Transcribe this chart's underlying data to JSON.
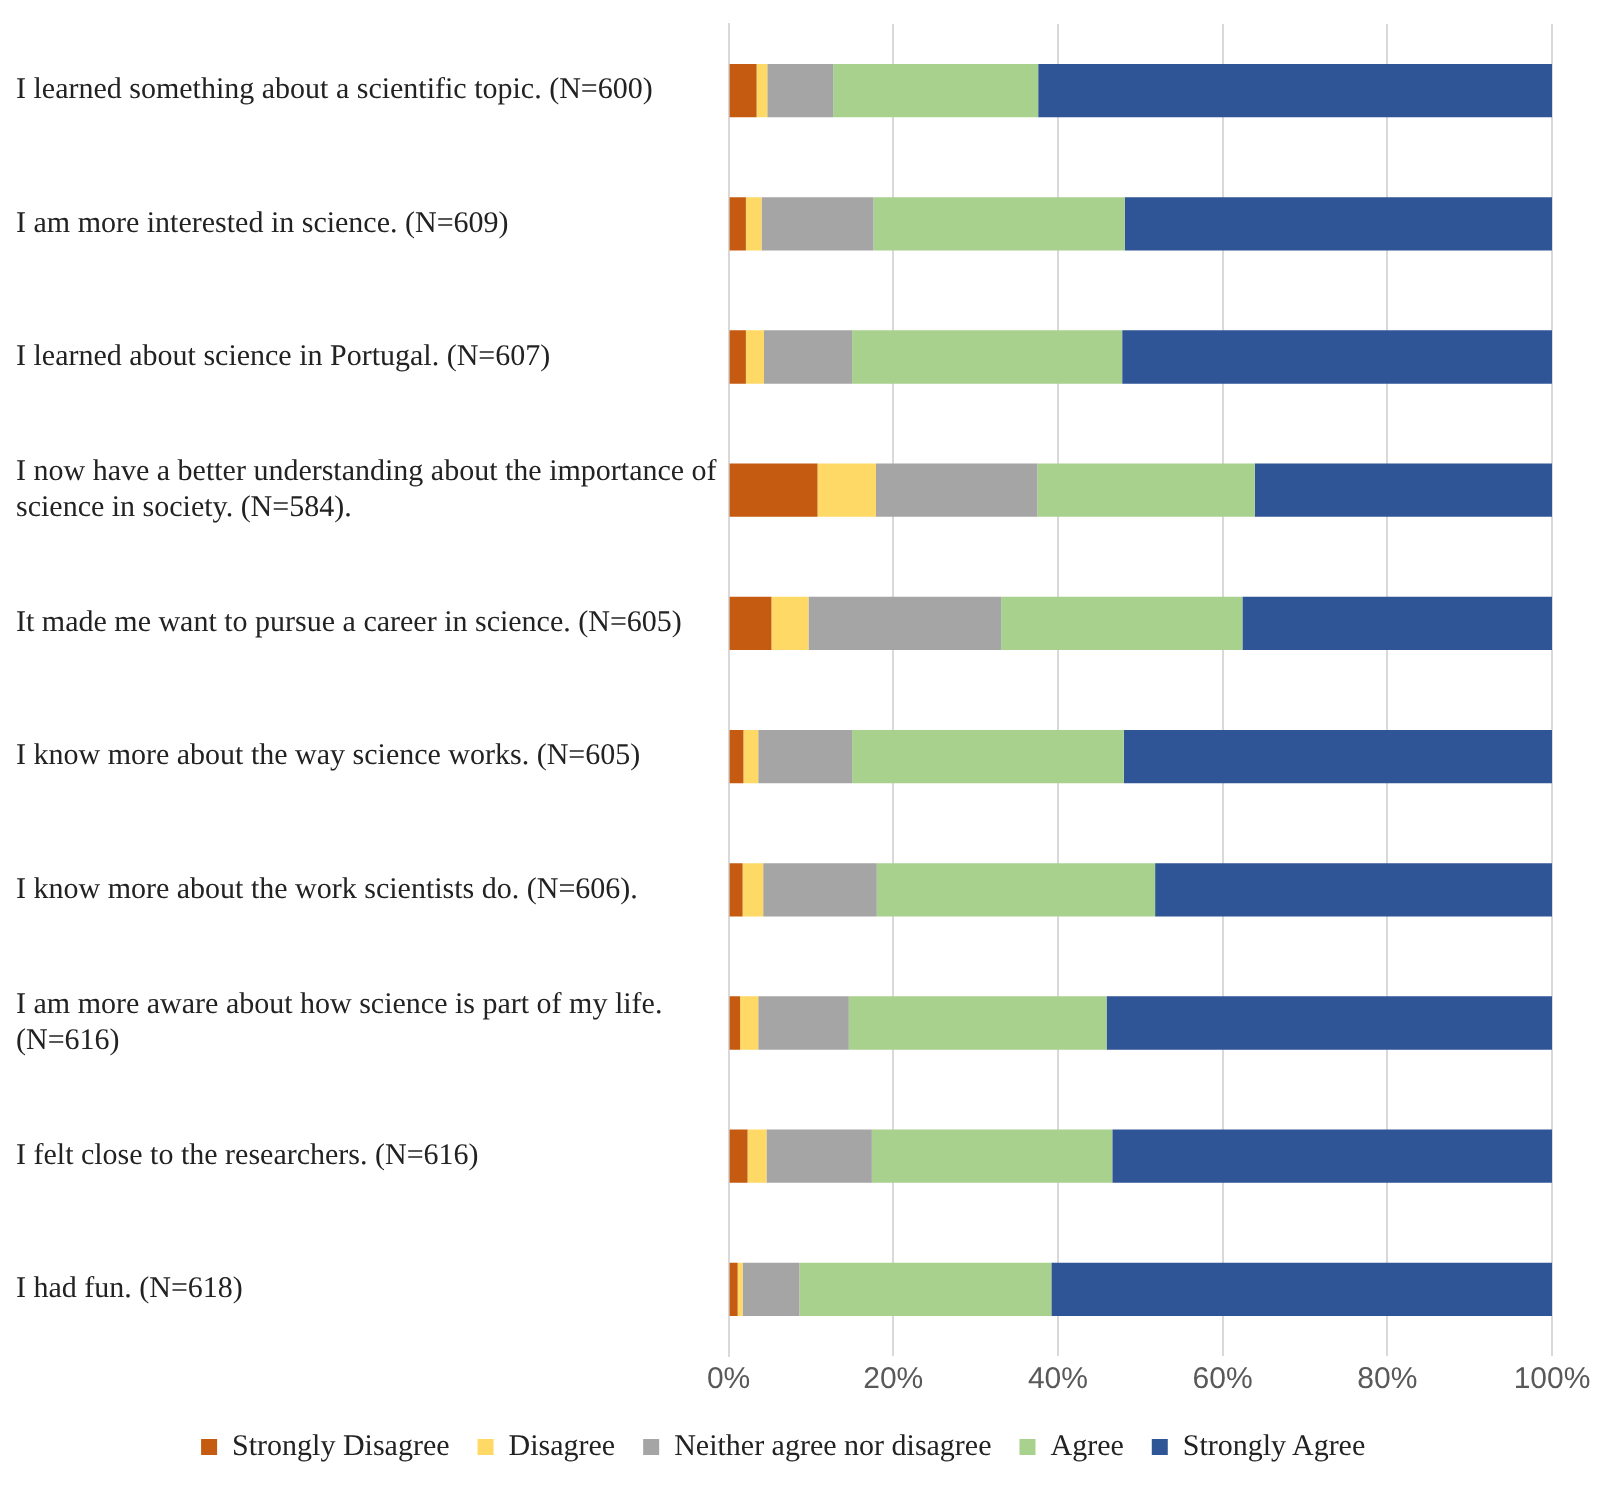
{
  "chart_data": {
    "type": "bar",
    "orientation": "horizontal",
    "stacked": true,
    "categories": [
      "I learned something about a scientific topic. (N=600)",
      "I am more interested in science. (N=609)",
      "I learned about science in Portugal. (N=607)",
      "I now have a better understanding about the importance of science in society. (N=584).",
      "It made me want to pursue a career in science. (N=605)",
      "I know more about the way science works. (N=605)",
      "I know more about the work scientists do. (N=606).",
      "I am more aware about how science is part of my life. (N=616)",
      "I felt close to the researchers. (N=616)",
      "I had fun. (N=618)"
    ],
    "series": [
      {
        "name": "Strongly Disagree",
        "color": "#c55a11",
        "values": [
          3.4,
          2.1,
          2.1,
          10.8,
          5.2,
          1.8,
          1.7,
          1.4,
          2.3,
          1.1
        ]
      },
      {
        "name": "Disagree",
        "color": "#ffd966",
        "values": [
          1.3,
          1.9,
          2.2,
          7.1,
          4.5,
          1.8,
          2.5,
          2.2,
          2.3,
          0.6
        ]
      },
      {
        "name": "Neither agree nor disagree",
        "color": "#a5a5a5",
        "values": [
          8.0,
          13.6,
          10.7,
          19.6,
          23.4,
          11.4,
          13.8,
          11.0,
          12.8,
          6.9
        ]
      },
      {
        "name": "Agree",
        "color": "#a9d18e",
        "values": [
          24.9,
          30.5,
          32.8,
          26.4,
          29.3,
          33.0,
          33.8,
          31.3,
          29.2,
          30.6
        ]
      },
      {
        "name": "Strongly Agree",
        "color": "#2f5597",
        "values": [
          62.4,
          51.9,
          52.2,
          36.1,
          37.6,
          52.0,
          48.2,
          54.1,
          53.4,
          60.8
        ]
      }
    ],
    "xlim": [
      0,
      100
    ],
    "xticks": [
      {
        "value": 0,
        "label": "0%"
      },
      {
        "value": 20,
        "label": "20%"
      },
      {
        "value": 40,
        "label": "40%"
      },
      {
        "value": 60,
        "label": "60%"
      },
      {
        "value": 80,
        "label": "80%"
      },
      {
        "value": 100,
        "label": "100%"
      }
    ],
    "grid": "x",
    "legend": "bottom"
  }
}
